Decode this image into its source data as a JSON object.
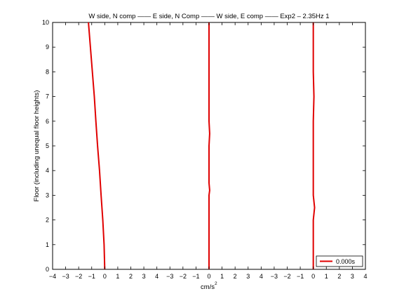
{
  "chart_data": {
    "type": "line",
    "title": "W side, N comp —— E side, N Comp —— W side, E comp —— Exp2 – 2.35Hz 1",
    "xlabel": "cm/s",
    "xlabel_superscript": "2",
    "ylabel": "Floor (including unequal floor heights)",
    "ylim": [
      0,
      10
    ],
    "y_ticks": [
      0,
      1,
      2,
      3,
      4,
      5,
      6,
      7,
      8,
      9,
      10
    ],
    "panel_xlim": [
      -4,
      4
    ],
    "x_tick_labels": [
      "−4",
      "−3",
      "−2",
      "−1",
      "0",
      "1",
      "2",
      "3",
      "4",
      "−3",
      "−2",
      "−1",
      "0",
      "1",
      "2",
      "3",
      "4",
      "−3",
      "−2",
      "−1",
      "0",
      "1",
      "2",
      "3",
      "4"
    ],
    "x_tick_values": [
      -4,
      -3,
      -2,
      -1,
      0,
      1,
      2,
      3,
      4,
      -3,
      -2,
      -1,
      0,
      1,
      2,
      3,
      4,
      -3,
      -2,
      -1,
      0,
      1,
      2,
      3,
      4
    ],
    "legend": {
      "placement": "bottom-right",
      "entries": [
        "0.000s"
      ]
    },
    "grid": false,
    "line_color": "#e00000",
    "panels": [
      {
        "name": "W side, N comp",
        "series": [
          {
            "name": "0.000s",
            "points": [
              [
                0,
                0
              ],
              [
                -0.05,
                1
              ],
              [
                -0.15,
                2
              ],
              [
                -0.28,
                3
              ],
              [
                -0.4,
                4
              ],
              [
                -0.55,
                5
              ],
              [
                -0.68,
                6
              ],
              [
                -0.8,
                7
              ],
              [
                -0.95,
                8
              ],
              [
                -1.1,
                9
              ],
              [
                -1.25,
                10
              ]
            ]
          }
        ]
      },
      {
        "name": "E side, N Comp",
        "series": [
          {
            "name": "0.000s",
            "points": [
              [
                0,
                0
              ],
              [
                0,
                1
              ],
              [
                0,
                2
              ],
              [
                0,
                3
              ],
              [
                0.05,
                3.2
              ],
              [
                0,
                3.5
              ],
              [
                0,
                4
              ],
              [
                0,
                5
              ],
              [
                0.05,
                5.5
              ],
              [
                0,
                6
              ],
              [
                0,
                7
              ],
              [
                0,
                8
              ],
              [
                0,
                9
              ],
              [
                0,
                10
              ]
            ]
          }
        ]
      },
      {
        "name": "W side, E comp",
        "series": [
          {
            "name": "0.000s",
            "points": [
              [
                0,
                0
              ],
              [
                0,
                1
              ],
              [
                0,
                2
              ],
              [
                0.1,
                2.5
              ],
              [
                0,
                3
              ],
              [
                0,
                4
              ],
              [
                0,
                5
              ],
              [
                0,
                6
              ],
              [
                0.05,
                7
              ],
              [
                0,
                8
              ],
              [
                0,
                9
              ],
              [
                0,
                10
              ]
            ]
          }
        ]
      }
    ]
  }
}
